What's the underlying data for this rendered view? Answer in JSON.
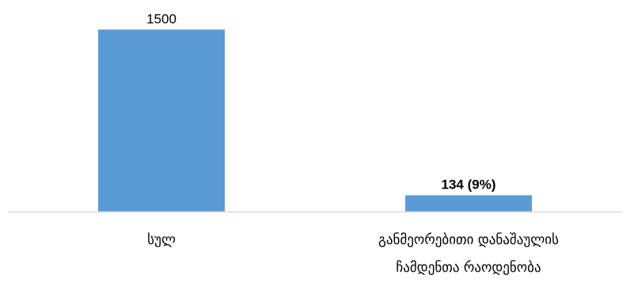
{
  "chart_data": {
    "type": "bar",
    "categories": [
      [
        "სულ"
      ],
      [
        "განმეორებითი დანაშაულის",
        "ჩამდენთა რაოდენობა"
      ]
    ],
    "values": [
      1500,
      134
    ],
    "data_labels": [
      "1500",
      "134 (9%)"
    ],
    "data_label_bold": [
      false,
      true
    ],
    "ylim": [
      0,
      1600
    ],
    "grid": false,
    "legend": "none",
    "colors": {
      "bar": "#5b9bd5",
      "axis": "#d9d9d9",
      "text": "#000000"
    }
  }
}
